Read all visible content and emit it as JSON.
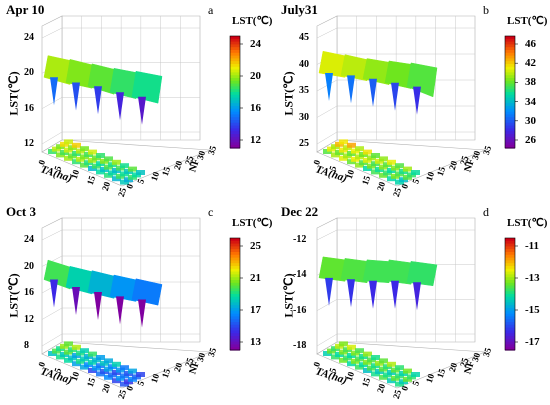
{
  "chart_data": [
    {
      "type": "surface3d",
      "date": "Apr 10",
      "letter": "a",
      "colorbar_title": "LST(℃)",
      "colorbar_ticks": [
        "24",
        "20",
        "16",
        "12"
      ],
      "colorbar_range": [
        11,
        26
      ],
      "zlabel": "LST(℃)",
      "zticks": [
        "24",
        "20",
        "16",
        "12"
      ],
      "zlim": [
        11,
        26
      ],
      "xlabel": "TA(ha)",
      "xticks": [
        "0",
        "5",
        "10",
        "15",
        "20",
        "25"
      ],
      "yticks": [
        "0",
        "5",
        "10",
        "15",
        "20",
        "25",
        "30",
        "35"
      ],
      "ylabel": "NF",
      "z_front": [
        20.2,
        19.5,
        19.0,
        18.2,
        17.6,
        17.0
      ],
      "z_back": [
        21.5,
        21.0,
        20.4,
        19.8,
        19.4,
        19.0
      ]
    },
    {
      "type": "surface3d",
      "date": "July31",
      "letter": "b",
      "colorbar_title": "LST(℃)",
      "colorbar_ticks": [
        "46",
        "42",
        "38",
        "34",
        "30",
        "26"
      ],
      "colorbar_range": [
        26,
        46
      ],
      "zlabel": "LST(℃)",
      "zticks": [
        "45",
        "40",
        "35",
        "30",
        "25"
      ],
      "zlim": [
        24,
        47
      ],
      "xlabel": "TA(ha)",
      "xticks": [
        "0",
        "5",
        "10",
        "15",
        "20",
        "25"
      ],
      "yticks": [
        "0",
        "5",
        "10",
        "15",
        "20",
        "25",
        "30",
        "35"
      ],
      "ylabel": "NF",
      "z_front": [
        39.0,
        38.5,
        37.8,
        37.0,
        36.2,
        34.5
      ],
      "z_back": [
        41.0,
        40.3,
        39.5,
        39.0,
        38.6,
        38.0
      ]
    },
    {
      "type": "surface3d",
      "date": "Oct 3",
      "letter": "c",
      "colorbar_title": "LST(℃)",
      "colorbar_ticks": [
        "25",
        "21",
        "17",
        "13"
      ],
      "colorbar_range": [
        13,
        25
      ],
      "zlabel": "LST(℃)",
      "zticks": [
        "24",
        "20",
        "16",
        "12",
        "8"
      ],
      "zlim": [
        8,
        26
      ],
      "xlabel": "TA(ha)",
      "xticks": [
        "0",
        "5",
        "10",
        "15",
        "20",
        "25"
      ],
      "yticks": [
        "0",
        "5",
        "10",
        "15",
        "20",
        "25",
        "30",
        "35"
      ],
      "ylabel": "NF",
      "z_front": [
        19.0,
        17.8,
        17.0,
        16.3,
        15.8,
        15.2
      ],
      "z_back": [
        20.2,
        19.2,
        18.5,
        17.8,
        17.2,
        16.6
      ]
    },
    {
      "type": "surface3d",
      "date": "Dec 22",
      "letter": "d",
      "colorbar_title": "LST(℃)",
      "colorbar_ticks": [
        "-11",
        "-13",
        "-15",
        "-17"
      ],
      "colorbar_range": [
        -17,
        -11
      ],
      "zlabel": "LST(℃)",
      "zticks": [
        "-12",
        "-14",
        "-16",
        "-18"
      ],
      "zlim": [
        -18.5,
        -11
      ],
      "xlabel": "TA(ha)",
      "xticks": [
        "0",
        "5",
        "10",
        "15",
        "20",
        "25"
      ],
      "yticks": [
        "0",
        "5",
        "10",
        "15",
        "20",
        "25",
        "30",
        "35"
      ],
      "ylabel": "NF",
      "z_front": [
        -13.8,
        -13.9,
        -14.0,
        -14.0,
        -14.1,
        -14.2
      ],
      "z_back": [
        -13.2,
        -13.3,
        -13.4,
        -13.4,
        -13.5,
        -13.6
      ]
    }
  ]
}
